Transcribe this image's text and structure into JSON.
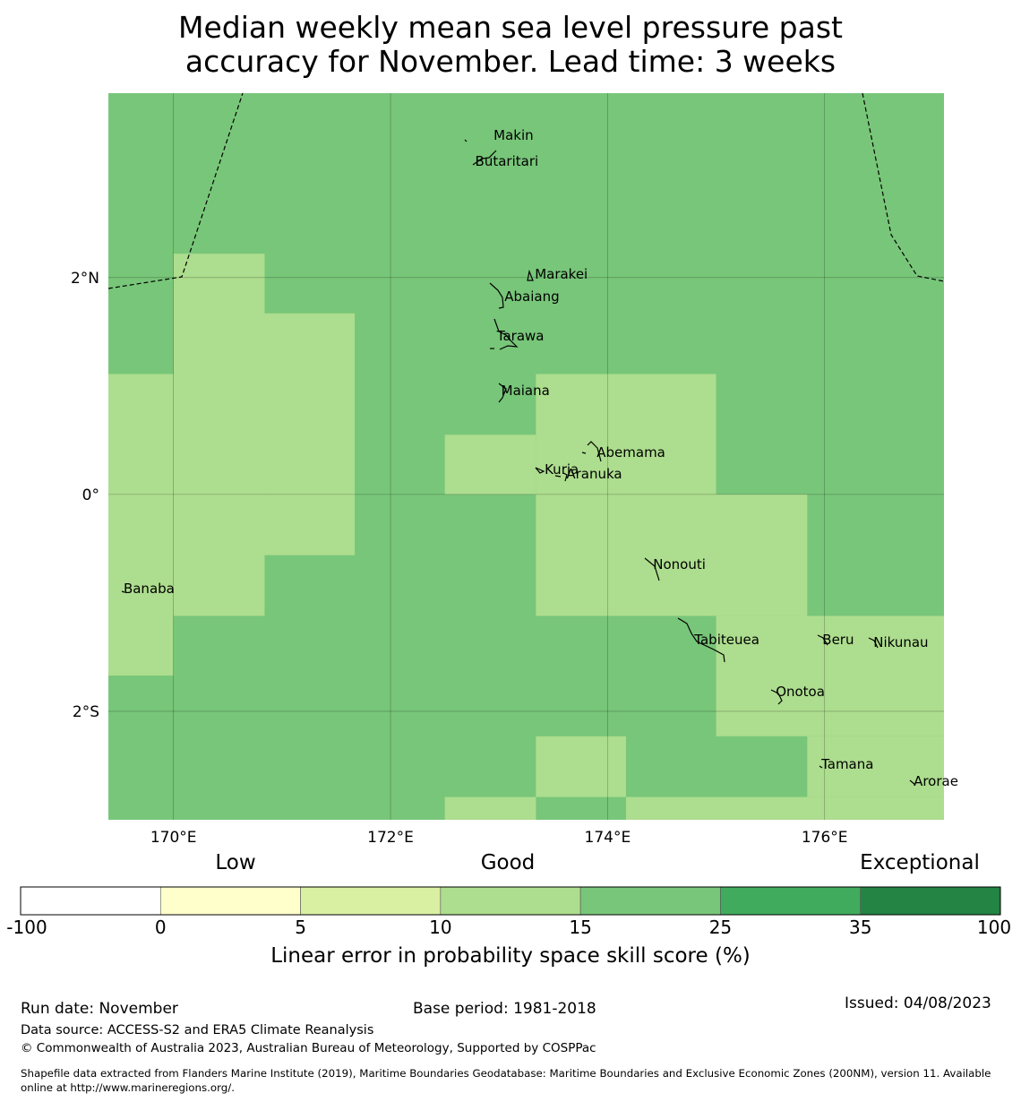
{
  "title": {
    "line1": "Median weekly mean sea level pressure past",
    "line2": "accuracy for November. Lead time: 3 weeks"
  },
  "map": {
    "lat_range": [
      -3.0,
      3.7
    ],
    "lon_range": [
      169.4,
      177.1
    ],
    "lat_ticks": [
      {
        "value": 2,
        "label": "2°N"
      },
      {
        "value": 0,
        "label": "0°"
      },
      {
        "value": -2,
        "label": "2°S"
      }
    ],
    "lon_ticks": [
      {
        "value": 170,
        "label": "170°E"
      },
      {
        "value": 172,
        "label": "172°E"
      },
      {
        "value": 174,
        "label": "174°E"
      },
      {
        "value": 176,
        "label": "176°E"
      }
    ],
    "base_category": "15-25",
    "cells": [
      {
        "lon0": 170.0,
        "lon1": 170.84,
        "lat0": -1.12,
        "lat1": 2.22,
        "category": "10-15"
      },
      {
        "lon0": 170.84,
        "lon1": 171.67,
        "lat0": -0.56,
        "lat1": 1.67,
        "category": "10-15"
      },
      {
        "lon0": 169.4,
        "lon1": 170.0,
        "lat0": -1.67,
        "lat1": 1.11,
        "category": "10-15"
      },
      {
        "lon0": 173.34,
        "lon1": 175.0,
        "lat0": 0.0,
        "lat1": 1.11,
        "category": "10-15"
      },
      {
        "lon0": 172.5,
        "lon1": 173.34,
        "lat0": 0.0,
        "lat1": 0.55,
        "category": "10-15"
      },
      {
        "lon0": 173.34,
        "lon1": 175.84,
        "lat0": -1.12,
        "lat1": 0.0,
        "category": "10-15"
      },
      {
        "lon0": 175.0,
        "lon1": 177.1,
        "lat0": -2.23,
        "lat1": -1.12,
        "category": "10-15"
      },
      {
        "lon0": 175.84,
        "lon1": 177.1,
        "lat0": -2.79,
        "lat1": -2.23,
        "category": "10-15"
      },
      {
        "lon0": 173.34,
        "lon1": 174.17,
        "lat0": -2.79,
        "lat1": -2.23,
        "category": "10-15"
      },
      {
        "lon0": 172.5,
        "lon1": 173.34,
        "lat0": -3.0,
        "lat1": -2.79,
        "category": "10-15"
      },
      {
        "lon0": 174.17,
        "lon1": 177.1,
        "lat0": -3.0,
        "lat1": -2.79,
        "category": "10-15"
      }
    ],
    "islands": [
      {
        "name": "Makin",
        "lon": 172.95,
        "lat": 3.3
      },
      {
        "name": "Butaritari",
        "lon": 172.78,
        "lat": 3.06
      },
      {
        "name": "Marakei",
        "lon": 173.33,
        "lat": 2.02
      },
      {
        "name": "Abaiang",
        "lon": 173.05,
        "lat": 1.82
      },
      {
        "name": "Tarawa",
        "lon": 172.98,
        "lat": 1.45
      },
      {
        "name": "Maiana",
        "lon": 173.02,
        "lat": 0.95
      },
      {
        "name": "Abemama",
        "lon": 173.9,
        "lat": 0.38
      },
      {
        "name": "Kuria",
        "lon": 173.42,
        "lat": 0.22
      },
      {
        "name": "Aranuka",
        "lon": 173.62,
        "lat": 0.18
      },
      {
        "name": "Nonouti",
        "lon": 174.42,
        "lat": -0.65
      },
      {
        "name": "Banaba",
        "lon": 169.54,
        "lat": -0.88
      },
      {
        "name": "Tabiteuea",
        "lon": 174.8,
        "lat": -1.35
      },
      {
        "name": "Beru",
        "lon": 175.98,
        "lat": -1.35
      },
      {
        "name": "Nikunau",
        "lon": 176.45,
        "lat": -1.37
      },
      {
        "name": "Onotoa",
        "lon": 175.55,
        "lat": -1.83
      },
      {
        "name": "Tamana",
        "lon": 175.97,
        "lat": -2.5
      },
      {
        "name": "Arorae",
        "lon": 176.82,
        "lat": -2.65
      }
    ]
  },
  "legend": {
    "quality_labels": [
      "Low",
      "Good",
      "Exceptional"
    ],
    "bins": [
      {
        "from": -100,
        "to": 0,
        "color": "#ffffff"
      },
      {
        "from": 0,
        "to": 5,
        "color": "#ffffcc"
      },
      {
        "from": 5,
        "to": 10,
        "color": "#d9f0a3"
      },
      {
        "from": 10,
        "to": 15,
        "color": "#addd8e"
      },
      {
        "from": 15,
        "to": 25,
        "color": "#78c679"
      },
      {
        "from": 25,
        "to": 35,
        "color": "#41ab5d"
      },
      {
        "from": 35,
        "to": 100,
        "color": "#238443"
      }
    ],
    "tick_labels": [
      "-100",
      "0",
      "5",
      "10",
      "15",
      "25",
      "35",
      "100"
    ],
    "axis_label": "Linear error in probability space skill score (%)"
  },
  "colors": {
    "10-15": "#addd8e",
    "15-25": "#78c679"
  },
  "footer": {
    "run_date": "Run date: November",
    "base_period": "Base period: 1981-2018",
    "issued": "Issued: 04/08/2023",
    "data_source": "Data source: ACCESS-S2 and ERA5 Climate Reanalysis",
    "copyright": "© Commonwealth of Australia 2023, Australian Bureau of Meteorology, Supported by COSPPac",
    "shapefile_line1": "Shapefile data extracted from Flanders Marine Institute (2019), Maritime Boundaries Geodatabase: Maritime Boundaries and Exclusive Economic Zones (200NM), version 11. Available",
    "shapefile_line2": "online at http://www.marineregions.org/."
  }
}
